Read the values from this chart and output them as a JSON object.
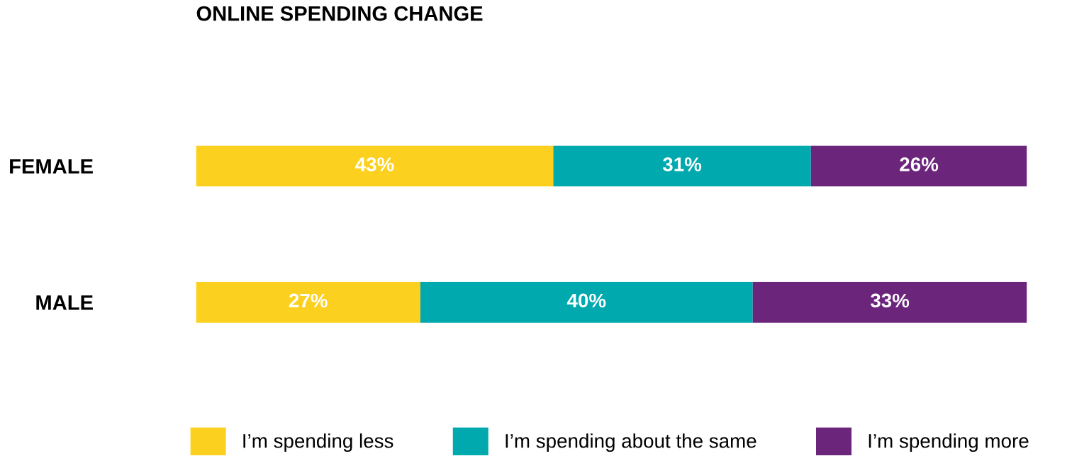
{
  "chart_data": {
    "type": "bar",
    "orientation": "horizontal",
    "stacked": true,
    "title": "ONLINE SPENDING CHANGE",
    "categories": [
      "FEMALE",
      "MALE"
    ],
    "series": [
      {
        "name": "I’m spending less",
        "color": "#fcd01e",
        "values": [
          43,
          27
        ],
        "value_labels": [
          "43%",
          "27%"
        ]
      },
      {
        "name": "I’m spending about the same",
        "color": "#00a9ad",
        "values": [
          31,
          40
        ],
        "value_labels": [
          "31%",
          "40%"
        ]
      },
      {
        "name": "I’m spending more",
        "color": "#6b267c",
        "values": [
          26,
          33
        ],
        "value_labels": [
          "26%",
          "33%"
        ]
      }
    ],
    "tick_labels": "y",
    "grid": false,
    "legend": "bottom"
  }
}
